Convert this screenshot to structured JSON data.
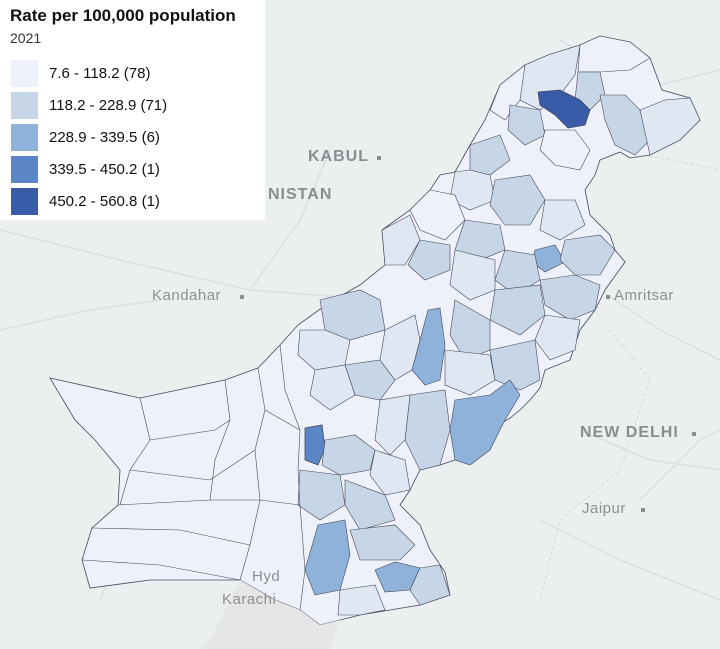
{
  "legend": {
    "title": "Rate per 100,000 population",
    "subtitle": "2021",
    "items": [
      {
        "label": "7.6 - 118.2 (78)",
        "color": "#eef1fa"
      },
      {
        "label": "118.2 - 228.9 (71)",
        "color": "#c7d6e6"
      },
      {
        "label": "228.9 - 339.5 (6)",
        "color": "#8fb2da"
      },
      {
        "label": "339.5 - 450.2 (1)",
        "color": "#5a86c5"
      },
      {
        "label": "450.2 - 560.8 (1)",
        "color": "#3a5ca8"
      }
    ]
  },
  "basemap_labels": {
    "kabul": "KABUL",
    "afghanistan": "NISTAN",
    "kandahar": "Kandahar",
    "amritsar": "Amritsar",
    "new_delhi": "NEW DELHI",
    "jaipur": "Jaipur",
    "hyderabad": "Hyd",
    "karachi": "Karachi"
  }
}
